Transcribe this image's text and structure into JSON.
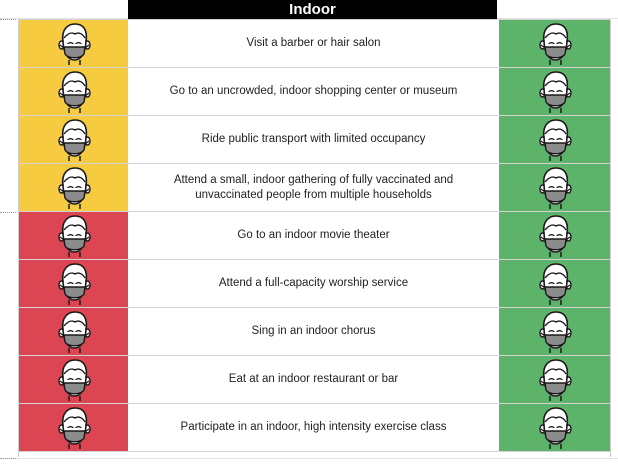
{
  "header": {
    "title": "Indoor"
  },
  "colors": {
    "yellow": "#f7cb3f",
    "red": "#dc4552",
    "green": "#5db36a",
    "mask": "#8c8c8c"
  },
  "icon": "masked-face-icon",
  "rows": [
    {
      "activity": "Visit a barber or hair salon",
      "unvaccinated_risk": "yellow",
      "vaccinated_risk": "green"
    },
    {
      "activity": "Go to an uncrowded, indoor shopping center or museum",
      "unvaccinated_risk": "yellow",
      "vaccinated_risk": "green"
    },
    {
      "activity": "Ride public transport with limited occupancy",
      "unvaccinated_risk": "yellow",
      "vaccinated_risk": "green"
    },
    {
      "activity": "Attend a small, indoor gathering of fully vaccinated and unvaccinated people from multiple households",
      "unvaccinated_risk": "yellow",
      "vaccinated_risk": "green"
    },
    {
      "activity": "Go to an indoor movie theater",
      "unvaccinated_risk": "red",
      "vaccinated_risk": "green"
    },
    {
      "activity": "Attend a full-capacity worship service",
      "unvaccinated_risk": "red",
      "vaccinated_risk": "green"
    },
    {
      "activity": "Sing in an indoor chorus",
      "unvaccinated_risk": "red",
      "vaccinated_risk": "green"
    },
    {
      "activity": "Eat at an indoor restaurant or bar",
      "unvaccinated_risk": "red",
      "vaccinated_risk": "green"
    },
    {
      "activity": "Participate in an indoor, high intensity exercise class",
      "unvaccinated_risk": "red",
      "vaccinated_risk": "green"
    }
  ]
}
